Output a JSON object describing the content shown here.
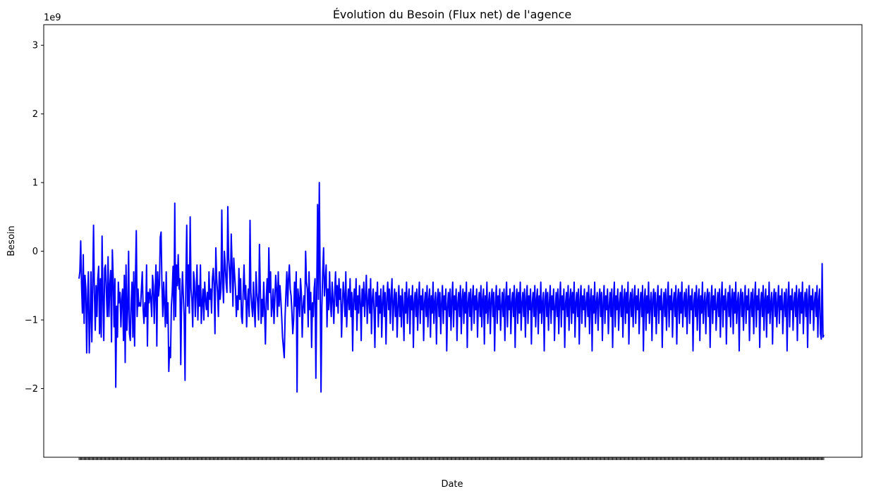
{
  "chart_data": {
    "type": "line",
    "title": "Évolution du Besoin (Flux net) de l'agence",
    "xlabel": "Date",
    "ylabel": "Besoin",
    "y_offset_text": "1e9",
    "ylim": [
      -3.0,
      3.3
    ],
    "yticks": [
      -2,
      -1,
      0,
      1,
      2,
      3
    ],
    "ytick_labels": [
      "−2",
      "−1",
      "0",
      "1",
      "2",
      "3"
    ],
    "grid": false,
    "legend": "none",
    "x_tick_labels_overlapping": true,
    "colors": {
      "line": "#0000ff",
      "axes": "#000000",
      "background": "#ffffff"
    },
    "series": [
      {
        "values": [
          -0.4,
          -0.3,
          0.15,
          -0.5,
          -0.9,
          -0.05,
          -1.05,
          -0.35,
          -0.55,
          -1.48,
          -0.7,
          -0.3,
          -1.48,
          -1.0,
          -0.3,
          -1.32,
          -0.55,
          0.38,
          -0.6,
          -1.15,
          -0.5,
          -0.95,
          -0.4,
          -0.22,
          -1.2,
          -0.4,
          -1.25,
          0.22,
          -0.7,
          -1.3,
          -0.25,
          -0.2,
          -0.6,
          -0.95,
          -0.08,
          -0.95,
          -0.5,
          -0.28,
          -1.32,
          0.02,
          -0.4,
          -1.1,
          -0.4,
          -1.98,
          -0.8,
          -1.25,
          -0.45,
          -0.75,
          -0.6,
          -1.1,
          -0.7,
          -0.55,
          -1.3,
          -0.35,
          -1.62,
          -0.2,
          -1.15,
          -0.85,
          0.0,
          -1.2,
          -1.3,
          -0.75,
          -0.45,
          -1.25,
          -0.3,
          -1.38,
          -0.4,
          0.3,
          -0.95,
          -0.55,
          -0.8,
          -0.75,
          -0.8,
          -0.55,
          -0.3,
          -0.85,
          -1.05,
          -0.75,
          -0.95,
          -0.2,
          -1.38,
          -0.6,
          -0.75,
          -0.55,
          -0.7,
          -0.95,
          -0.35,
          -0.5,
          -1.05,
          -0.6,
          -0.2,
          -1.38,
          -0.3,
          -0.65,
          -0.5,
          0.2,
          0.28,
          -0.5,
          -0.95,
          -0.45,
          -0.75,
          -1.1,
          -0.3,
          -1.05,
          -0.75,
          -1.75,
          -1.4,
          -1.55,
          -0.8,
          -0.6,
          -0.22,
          -1.0,
          0.7,
          -0.95,
          -0.2,
          -0.5,
          -0.05,
          -0.55,
          -0.4,
          -1.65,
          -0.7,
          -0.3,
          -0.65,
          -0.95,
          -1.88,
          -0.4,
          0.38,
          -0.8,
          -0.2,
          -0.9,
          0.5,
          -0.55,
          -0.7,
          -1.1,
          -0.3,
          -0.45,
          -0.95,
          -0.6,
          -0.2,
          -1.0,
          -0.5,
          -0.8,
          -0.2,
          -1.05,
          -0.75,
          -0.55,
          -1.0,
          -0.45,
          -0.7,
          -0.85,
          -0.6,
          -0.95,
          -0.3,
          -0.7,
          -0.55,
          -0.9,
          -0.4,
          -0.25,
          -0.5,
          -1.2,
          0.05,
          -0.4,
          -0.6,
          -0.95,
          -0.3,
          -0.7,
          -0.55,
          0.6,
          -0.45,
          -0.75,
          0.0,
          -0.2,
          -0.45,
          -0.6,
          0.65,
          -0.1,
          -0.3,
          -0.6,
          0.25,
          -0.2,
          -0.8,
          -0.1,
          -0.35,
          -0.55,
          -0.95,
          -0.65,
          -0.85,
          -0.25,
          -0.7,
          -0.4,
          -0.95,
          -1.05,
          -0.6,
          -0.2,
          -0.7,
          -0.5,
          -1.1,
          -0.75,
          -0.55,
          -0.95,
          0.45,
          -0.6,
          -0.8,
          -0.95,
          -0.45,
          -0.85,
          -1.1,
          -0.3,
          -0.6,
          -0.75,
          -1.0,
          0.1,
          -0.55,
          -1.05,
          -0.7,
          -0.95,
          -0.45,
          -0.85,
          -1.35,
          -0.7,
          -0.4,
          -0.85,
          0.05,
          -0.6,
          -0.3,
          -0.95,
          -0.8,
          -0.55,
          -1.05,
          -0.7,
          -0.35,
          -0.55,
          -0.95,
          -0.3,
          -0.8,
          -0.5,
          -0.7,
          -0.95,
          -1.25,
          -1.4,
          -1.55,
          -0.95,
          -0.6,
          -0.3,
          -0.8,
          -0.4,
          -0.2,
          -0.55,
          -0.65,
          -0.9,
          -1.2,
          -1.0,
          -0.45,
          -0.8,
          -0.3,
          -2.05,
          -0.55,
          -0.7,
          -0.95,
          -0.4,
          -0.6,
          -1.25,
          -0.8,
          -0.65,
          -0.9,
          0.0,
          -0.45,
          -0.55,
          -1.1,
          -0.3,
          -0.85,
          -0.6,
          -1.4,
          -0.75,
          -0.95,
          -0.55,
          -0.4,
          -1.85,
          -0.6,
          0.68,
          -0.7,
          1.0,
          -0.45,
          -2.05,
          -0.8,
          -0.3,
          0.05,
          -0.65,
          -0.45,
          -0.2,
          -1.1,
          -0.55,
          -0.85,
          -0.3,
          -0.75,
          -0.95,
          -0.45,
          -0.7,
          -1.05,
          -0.6,
          -0.3,
          -0.8,
          -0.5,
          -0.9,
          -0.4,
          -0.7,
          -0.55,
          -1.25,
          -0.8,
          -0.45,
          -0.65,
          -0.95,
          -0.3,
          -1.1,
          -0.75,
          -0.55,
          -0.85,
          -0.4,
          -0.95,
          -0.6,
          -1.45,
          -0.7,
          -0.55,
          -0.85,
          -0.4,
          -1.15,
          -0.65,
          -0.9,
          -0.5,
          -0.75,
          -1.3,
          -0.55,
          -0.8,
          -0.45,
          -0.95,
          -0.65,
          -0.35,
          -1.05,
          -0.75,
          -0.55,
          -0.9,
          -0.4,
          -1.2,
          -0.7,
          -0.55,
          -0.85,
          -1.4,
          -0.6,
          -0.8,
          -0.45,
          -1.1,
          -0.65,
          -0.9,
          -0.55,
          -1.25,
          -0.75,
          -0.5,
          -0.95,
          -0.6,
          -1.35,
          -0.7,
          -0.45,
          -0.85,
          -0.55,
          -1.05,
          -0.65,
          -0.4,
          -1.15,
          -0.75,
          -0.55,
          -0.95,
          -0.6,
          -1.25,
          -0.8,
          -0.5,
          -0.95,
          -0.65,
          -1.1,
          -0.55,
          -0.8,
          -1.3,
          -0.6,
          -0.9,
          -0.45,
          -1.05,
          -0.7,
          -0.55,
          -1.2,
          -0.65,
          -0.85,
          -0.5,
          -1.4,
          -0.75,
          -0.6,
          -0.95,
          -0.55,
          -1.15,
          -0.7,
          -0.45,
          -1.05,
          -0.65,
          -0.85,
          -0.55,
          -1.3,
          -0.75,
          -0.6,
          -0.95,
          -0.5,
          -1.1,
          -0.7,
          -0.55,
          -1.25,
          -0.65,
          -0.9,
          -0.45,
          -1.05,
          -0.75,
          -0.6,
          -1.35,
          -0.7,
          -0.55,
          -0.95,
          -0.6,
          -1.2,
          -0.75,
          -0.5,
          -1.05,
          -0.65,
          -0.85,
          -0.55,
          -1.45,
          -0.8,
          -0.6,
          -0.95,
          -0.55,
          -1.15,
          -0.7,
          -0.45,
          -1.1,
          -0.65,
          -0.85,
          -0.55,
          -1.3,
          -0.75,
          -0.6,
          -0.95,
          -0.5,
          -1.2,
          -0.7,
          -0.55,
          -1.05,
          -0.6,
          -0.9,
          -0.45,
          -1.4,
          -0.75,
          -0.6,
          -0.95,
          -0.55,
          -1.15,
          -0.7,
          -0.5,
          -1.05,
          -0.65,
          -0.85,
          -0.55,
          -1.25,
          -0.75,
          -0.6,
          -0.95,
          -0.5,
          -1.1,
          -0.7,
          -0.55,
          -1.35,
          -0.65,
          -0.9,
          -0.45,
          -1.05,
          -0.75,
          -0.6,
          -1.2,
          -0.7,
          -0.55,
          -0.95,
          -0.6,
          -1.45,
          -0.75,
          -0.5,
          -1.05,
          -0.65,
          -0.85,
          -0.55,
          -1.15,
          -0.8,
          -0.6,
          -0.95,
          -0.55,
          -1.3,
          -0.7,
          -0.45,
          -1.1,
          -0.65,
          -0.85,
          -0.55,
          -1.2,
          -0.75,
          -0.6,
          -0.95,
          -0.5,
          -1.4,
          -0.7,
          -0.55,
          -1.05,
          -0.6,
          -0.9,
          -0.45,
          -1.15,
          -0.75,
          -0.6,
          -0.95,
          -0.55,
          -1.25,
          -0.7,
          -0.5,
          -1.05,
          -0.65,
          -0.85,
          -0.55,
          -1.35,
          -0.75,
          -0.6,
          -0.95,
          -0.5,
          -1.1,
          -0.7,
          -0.55,
          -1.2,
          -0.65,
          -0.9,
          -0.45,
          -1.05,
          -0.75,
          -0.6,
          -1.45,
          -0.7,
          -0.55,
          -0.95,
          -0.6,
          -1.15,
          -0.75,
          -0.5,
          -1.05,
          -0.65,
          -0.85,
          -0.55,
          -1.3,
          -0.8,
          -0.6,
          -0.95,
          -0.55,
          -1.2,
          -0.7,
          -0.45,
          -1.1,
          -0.65,
          -0.85,
          -0.55,
          -1.4,
          -0.75,
          -0.6,
          -0.95,
          -0.5,
          -1.15,
          -0.7,
          -0.55,
          -1.05,
          -0.6,
          -0.9,
          -0.45,
          -1.25,
          -0.75,
          -0.6,
          -0.95,
          -0.55,
          -1.35,
          -0.7,
          -0.5,
          -1.05,
          -0.65,
          -0.85,
          -0.55,
          -1.1,
          -0.75,
          -0.6,
          -0.95,
          -0.5,
          -1.2,
          -0.7,
          -0.55,
          -1.45,
          -0.65,
          -0.9,
          -0.45,
          -1.05,
          -0.75,
          -0.6,
          -1.15,
          -0.7,
          -0.55,
          -0.95,
          -0.6,
          -1.3,
          -0.75,
          -0.5,
          -1.05,
          -0.65,
          -0.85,
          -0.55,
          -1.2,
          -0.8,
          -0.6,
          -0.95,
          -0.55,
          -1.4,
          -0.7,
          -0.45,
          -1.1,
          -0.65,
          -0.85,
          -0.55,
          -1.15,
          -0.75,
          -0.6,
          -0.95,
          -0.5,
          -1.25,
          -0.7,
          -0.55,
          -1.05,
          -0.6,
          -0.9,
          -0.45,
          -1.35,
          -0.75,
          -0.6,
          -0.95,
          -0.55,
          -1.1,
          -0.7,
          -0.5,
          -1.05,
          -0.65,
          -0.85,
          -0.55,
          -1.2,
          -0.75,
          -0.6,
          -0.95,
          -0.5,
          -1.45,
          -0.7,
          -0.55,
          -1.15,
          -0.65,
          -0.9,
          -0.45,
          -1.05,
          -0.75,
          -0.6,
          -1.3,
          -0.7,
          -0.55,
          -0.95,
          -0.6,
          -1.2,
          -0.75,
          -0.5,
          -1.05,
          -0.65,
          -0.85,
          -0.55,
          -1.4,
          -0.8,
          -0.6,
          -0.95,
          -0.55,
          -1.15,
          -0.7,
          -0.45,
          -1.1,
          -0.65,
          -0.85,
          -0.55,
          -1.25,
          -0.75,
          -0.6,
          -0.95,
          -0.5,
          -1.35,
          -0.7,
          -0.55,
          -1.05,
          -0.6,
          -0.9,
          -0.45,
          -1.1,
          -0.75,
          -0.6,
          -0.95,
          -0.55,
          -1.2,
          -0.7,
          -0.5,
          -1.05,
          -0.65,
          -0.85,
          -0.55,
          -1.45,
          -0.75,
          -0.6,
          -0.95,
          -0.5,
          -1.15,
          -0.7,
          -0.55,
          -1.3,
          -0.65,
          -0.9,
          -0.45,
          -1.05,
          -0.75,
          -0.6,
          -1.2,
          -0.7,
          -0.55,
          -0.95,
          -0.6,
          -1.4,
          -0.75,
          -0.5,
          -1.05,
          -0.65,
          -0.85,
          -0.55,
          -1.15,
          -0.8,
          -0.6,
          -0.95,
          -0.55,
          -1.25,
          -0.7,
          -0.45,
          -1.1,
          -0.65,
          -0.85,
          -0.55,
          -1.35,
          -0.75,
          -0.6,
          -0.95,
          -0.5,
          -1.1,
          -0.7,
          -0.55,
          -1.2,
          -0.6,
          -0.9,
          -0.45,
          -1.05,
          -0.75,
          -0.6,
          -1.45,
          -0.7,
          -0.55,
          -0.95,
          -0.6,
          -1.15,
          -0.75,
          -0.5,
          -1.05,
          -0.65,
          -0.85,
          -0.55,
          -1.3,
          -0.8,
          -0.6,
          -0.95,
          -0.55,
          -1.2,
          -0.7,
          -0.45,
          -1.1,
          -0.65,
          -0.85,
          -0.55,
          -1.4,
          -0.75,
          -0.6,
          -0.95,
          -0.5,
          -1.15,
          -0.7,
          -0.55,
          -1.25,
          -0.65,
          -0.9,
          -0.45,
          -1.05,
          -0.75,
          -0.6,
          -1.35,
          -0.7,
          -0.55,
          -0.95,
          -0.6,
          -1.1,
          -0.75,
          -0.5,
          -1.05,
          -0.65,
          -0.85,
          -0.55,
          -1.2,
          -0.8,
          -0.6,
          -0.95,
          -0.55,
          -1.45,
          -0.7,
          -0.45,
          -1.1,
          -0.65,
          -0.85,
          -0.55,
          -1.15,
          -0.75,
          -0.6,
          -0.95,
          -0.5,
          -1.3,
          -0.7,
          -0.55,
          -1.05,
          -0.6,
          -0.9,
          -0.45,
          -1.2,
          -0.75,
          -0.6,
          -0.95,
          -0.55,
          -1.4,
          -0.7,
          -0.5,
          -1.05,
          -0.65,
          -0.85,
          -0.55,
          -1.15,
          -0.75,
          -0.6,
          -0.95,
          -0.5,
          -1.25,
          -0.7,
          -0.55,
          -1.2,
          -1.28,
          -0.18,
          -1.25,
          -1.22
        ]
      }
    ]
  }
}
